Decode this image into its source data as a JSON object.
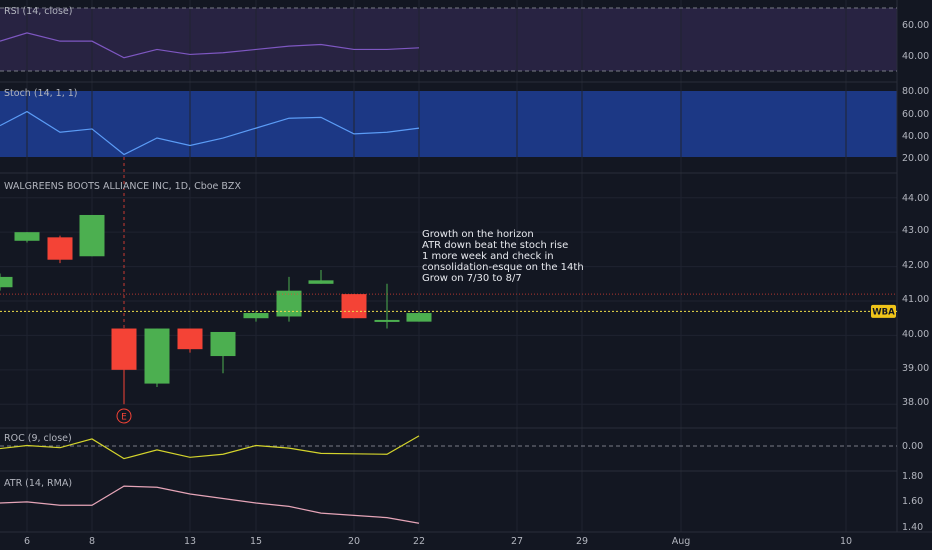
{
  "panes": {
    "rsi": {
      "label": "RSI (14, close)",
      "ticks": [
        "60.00",
        "40.00"
      ]
    },
    "stoch": {
      "label": "Stoch (14, 1, 1)",
      "ticks": [
        "80.00",
        "60.00",
        "40.00",
        "20.00"
      ]
    },
    "price": {
      "label": "WALGREENS BOOTS ALLIANCE INC, 1D, Cboe BZX",
      "ticks": [
        "44.00",
        "43.00",
        "42.00",
        "41.00",
        "40.00",
        "39.00",
        "38.00"
      ],
      "price_badge": "WBA",
      "earnings_marker": "E"
    },
    "roc": {
      "label": "ROC (9, close)",
      "ticks": [
        "0.00"
      ]
    },
    "atr": {
      "label": "ATR (14, RMA)",
      "ticks": [
        "1.80",
        "1.60",
        "1.40"
      ]
    }
  },
  "x_axis": {
    "labels": [
      "6",
      "8",
      "13",
      "15",
      "20",
      "22",
      "27",
      "29",
      "Aug",
      "10"
    ]
  },
  "annotation": {
    "lines": [
      "Growth on the horizon",
      "ATR down beat the stoch rise",
      "1 more week and check in",
      "consolidation-esque on the 14th",
      "Grow on 7/30 to 8/7"
    ]
  },
  "colors": {
    "up": "#4caf50",
    "down": "#f44336",
    "rsi_line": "#7e57c2",
    "stoch_line": "#5b9cf6",
    "roc_line": "#d4d42c",
    "atr_line": "#e6a5b8",
    "price_line": "#f0e04a",
    "background": "#131722"
  },
  "chart_data": [
    {
      "type": "candlestick",
      "title": "WALGREENS BOOTS ALLIANCE INC, 1D, Cboe BZX",
      "ylim": [
        37.6,
        44.4
      ],
      "candles": [
        {
          "open": 41.4,
          "close": 41.7,
          "high": 41.8,
          "low": 41.3
        },
        {
          "open": 42.75,
          "close": 43.0,
          "high": 43.0,
          "low": 42.7
        },
        {
          "open": 42.85,
          "close": 42.2,
          "high": 42.9,
          "low": 42.1
        },
        {
          "open": 42.3,
          "close": 43.5,
          "high": 43.5,
          "low": 42.3
        },
        {
          "open": 40.2,
          "close": 39.0,
          "high": 40.2,
          "low": 38.0
        },
        {
          "open": 38.6,
          "close": 40.2,
          "high": 40.2,
          "low": 38.5
        },
        {
          "open": 40.2,
          "close": 39.6,
          "high": 40.2,
          "low": 39.5
        },
        {
          "open": 39.4,
          "close": 40.1,
          "high": 40.1,
          "low": 38.9
        },
        {
          "open": 40.5,
          "close": 40.65,
          "high": 40.7,
          "low": 40.4
        },
        {
          "open": 40.55,
          "close": 41.3,
          "high": 41.7,
          "low": 40.4
        },
        {
          "open": 41.5,
          "close": 41.6,
          "high": 41.9,
          "low": 41.5
        },
        {
          "open": 41.2,
          "close": 40.5,
          "high": 41.2,
          "low": 40.5
        },
        {
          "open": 40.45,
          "close": 40.45,
          "high": 41.5,
          "low": 40.2
        },
        {
          "open": 40.4,
          "close": 40.65,
          "high": 40.7,
          "low": 40.4
        }
      ],
      "price_line": 40.7,
      "dotted_level": 41.2
    },
    {
      "type": "line",
      "name": "RSI (14, close)",
      "ylim": [
        32,
        70
      ],
      "values": [
        50,
        55,
        50,
        50,
        40,
        45,
        42,
        43,
        45,
        47,
        48,
        45,
        45,
        46
      ]
    },
    {
      "type": "line",
      "name": "Stoch (14, 1, 1)",
      "ylim": [
        10,
        90
      ],
      "values": [
        48,
        65,
        40,
        44,
        13,
        33,
        24,
        33,
        45,
        57,
        58,
        38,
        40,
        45
      ]
    },
    {
      "type": "line",
      "name": "ROC (9, close)",
      "ylim": [
        -4,
        4
      ],
      "values": [
        -0.7,
        0.0,
        -0.5,
        1.5,
        -3.0,
        -1.0,
        -2.7,
        -2.0,
        0.0,
        -0.6,
        -1.8,
        -1.9,
        -2.0,
        2.2
      ]
    },
    {
      "type": "line",
      "name": "ATR (14, RMA)",
      "ylim": [
        1.38,
        1.86
      ],
      "values": [
        1.62,
        1.63,
        1.6,
        1.6,
        1.77,
        1.76,
        1.7,
        1.66,
        1.62,
        1.59,
        1.53,
        1.51,
        1.49,
        1.44
      ]
    }
  ]
}
